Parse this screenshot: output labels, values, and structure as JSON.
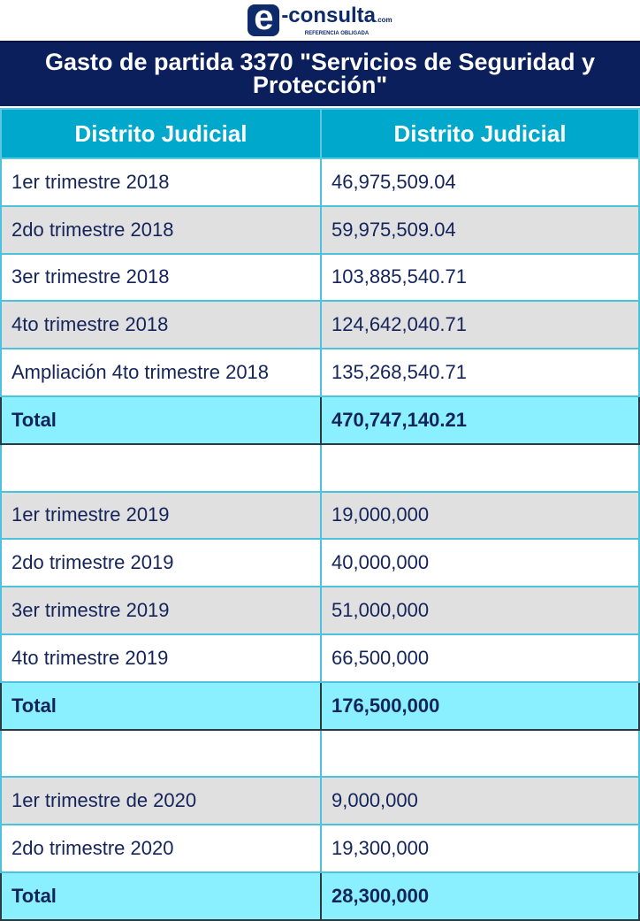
{
  "logo": {
    "letter": "e",
    "name": "-consulta",
    "suffix": ".com",
    "tagline": "REFERENCIA OBLIGADA"
  },
  "title": "Gasto de partida 3370 \"Servicios de Seguridad y Protección\"",
  "headers": [
    "Distrito Judicial",
    "Distrito Judicial"
  ],
  "rows": [
    {
      "label": "1er trimestre 2018",
      "value": "46,975,509.04",
      "style": "w"
    },
    {
      "label": "2do trimestre 2018",
      "value": "59,975,509.04",
      "style": "g"
    },
    {
      "label": "3er trimestre 2018",
      "value": "103,885,540.71",
      "style": "w"
    },
    {
      "label": "4to trimestre 2018",
      "value": "124,642,040.71",
      "style": "g"
    },
    {
      "label": "Ampliación 4to trimestre 2018",
      "value": "135,268,540.71",
      "style": "w"
    },
    {
      "label": "Total",
      "value": "470,747,140.21",
      "style": "t"
    },
    {
      "label": "",
      "value": "",
      "style": "w"
    },
    {
      "label": "1er trimestre 2019",
      "value": "19,000,000",
      "style": "g"
    },
    {
      "label": "2do trimestre 2019",
      "value": "40,000,000",
      "style": "w"
    },
    {
      "label": "3er trimestre 2019",
      "value": "51,000,000",
      "style": "g"
    },
    {
      "label": "4to trimestre 2019",
      "value": "66,500,000",
      "style": "w"
    },
    {
      "label": "Total",
      "value": "176,500,000",
      "style": "t"
    },
    {
      "label": "",
      "value": "",
      "style": "w"
    },
    {
      "label": "1er trimestre de 2020",
      "value": "9,000,000",
      "style": "g"
    },
    {
      "label": "2do trimestre 2020",
      "value": "19,300,000",
      "style": "w"
    },
    {
      "label": "Total",
      "value": "28,300,000",
      "style": "t"
    }
  ]
}
